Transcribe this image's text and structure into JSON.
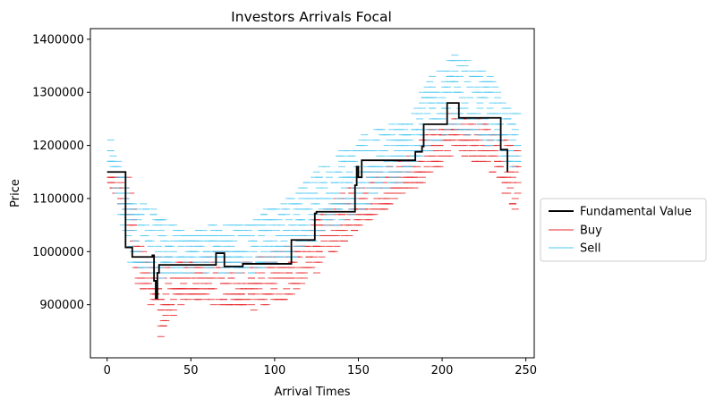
{
  "chart_data": {
    "type": "line",
    "title": "Investors Arrivals Focal",
    "xlabel": "Arrival Times",
    "ylabel": "Price",
    "xlim": [
      -10,
      255
    ],
    "ylim": [
      800000,
      1420000
    ],
    "xticks": [
      0,
      50,
      100,
      150,
      200,
      250
    ],
    "xtick_labels": [
      "0",
      "50",
      "100",
      "150",
      "200",
      "250"
    ],
    "yticks": [
      900000,
      1000000,
      1100000,
      1200000,
      1300000,
      1400000
    ],
    "ytick_labels": [
      "900000",
      "1000000",
      "1100000",
      "1200000",
      "1300000",
      "1400000"
    ],
    "grid": false,
    "legend_position": "center-left outside right",
    "fundamental_value": {
      "name": "Fundamental Value",
      "color": "#000000",
      "step_points": [
        [
          0,
          1150000
        ],
        [
          11,
          1150000
        ],
        [
          11,
          1008000
        ],
        [
          15,
          1008000
        ],
        [
          15,
          990000
        ],
        [
          27,
          990000
        ],
        [
          27,
          993000
        ],
        [
          28,
          993000
        ],
        [
          28,
          945000
        ],
        [
          29,
          945000
        ],
        [
          29,
          912000
        ],
        [
          30,
          912000
        ],
        [
          30,
          960000
        ],
        [
          31,
          960000
        ],
        [
          31,
          975000
        ],
        [
          65,
          975000
        ],
        [
          65,
          997000
        ],
        [
          70,
          997000
        ],
        [
          70,
          972000
        ],
        [
          81,
          972000
        ],
        [
          81,
          977000
        ],
        [
          110,
          977000
        ],
        [
          110,
          1022000
        ],
        [
          124,
          1022000
        ],
        [
          124,
          1072000
        ],
        [
          125,
          1072000
        ],
        [
          125,
          1075000
        ],
        [
          148,
          1075000
        ],
        [
          148,
          1125000
        ],
        [
          149,
          1125000
        ],
        [
          149,
          1160000
        ],
        [
          150,
          1160000
        ],
        [
          150,
          1140000
        ],
        [
          152,
          1140000
        ],
        [
          152,
          1172000
        ],
        [
          184,
          1172000
        ],
        [
          184,
          1188000
        ],
        [
          188,
          1188000
        ],
        [
          188,
          1198000
        ],
        [
          189,
          1198000
        ],
        [
          189,
          1240000
        ],
        [
          203,
          1240000
        ],
        [
          203,
          1280000
        ],
        [
          210,
          1280000
        ],
        [
          210,
          1252000
        ],
        [
          235,
          1252000
        ],
        [
          235,
          1192000
        ],
        [
          239,
          1192000
        ],
        [
          239,
          1150000
        ]
      ]
    },
    "buy": {
      "name": "Buy",
      "color": "#e8272a",
      "profile": [
        [
          0,
          1120000,
          1150000
        ],
        [
          12,
          1040000,
          1150000
        ],
        [
          16,
          940000,
          1010000
        ],
        [
          25,
          900000,
          1000000
        ],
        [
          30,
          840000,
          990000
        ],
        [
          45,
          910000,
          985000
        ],
        [
          65,
          900000,
          1000000
        ],
        [
          85,
          890000,
          985000
        ],
        [
          110,
          920000,
          1020000
        ],
        [
          125,
          970000,
          1070000
        ],
        [
          150,
          1050000,
          1150000
        ],
        [
          175,
          1110000,
          1170000
        ],
        [
          190,
          1140000,
          1230000
        ],
        [
          205,
          1190000,
          1270000
        ],
        [
          225,
          1160000,
          1240000
        ],
        [
          240,
          1080000,
          1200000
        ]
      ]
    },
    "sell": {
      "name": "Sell",
      "color": "#4dc9f2",
      "profile": [
        [
          0,
          1150000,
          1220000
        ],
        [
          12,
          980000,
          1100000
        ],
        [
          25,
          960000,
          1090000
        ],
        [
          30,
          940000,
          1060000
        ],
        [
          45,
          960000,
          1040000
        ],
        [
          65,
          960000,
          1050000
        ],
        [
          85,
          960000,
          1060000
        ],
        [
          110,
          990000,
          1110000
        ],
        [
          125,
          1030000,
          1160000
        ],
        [
          150,
          1080000,
          1220000
        ],
        [
          175,
          1140000,
          1250000
        ],
        [
          190,
          1190000,
          1320000
        ],
        [
          205,
          1230000,
          1370000
        ],
        [
          225,
          1200000,
          1340000
        ],
        [
          240,
          1160000,
          1260000
        ]
      ]
    }
  }
}
